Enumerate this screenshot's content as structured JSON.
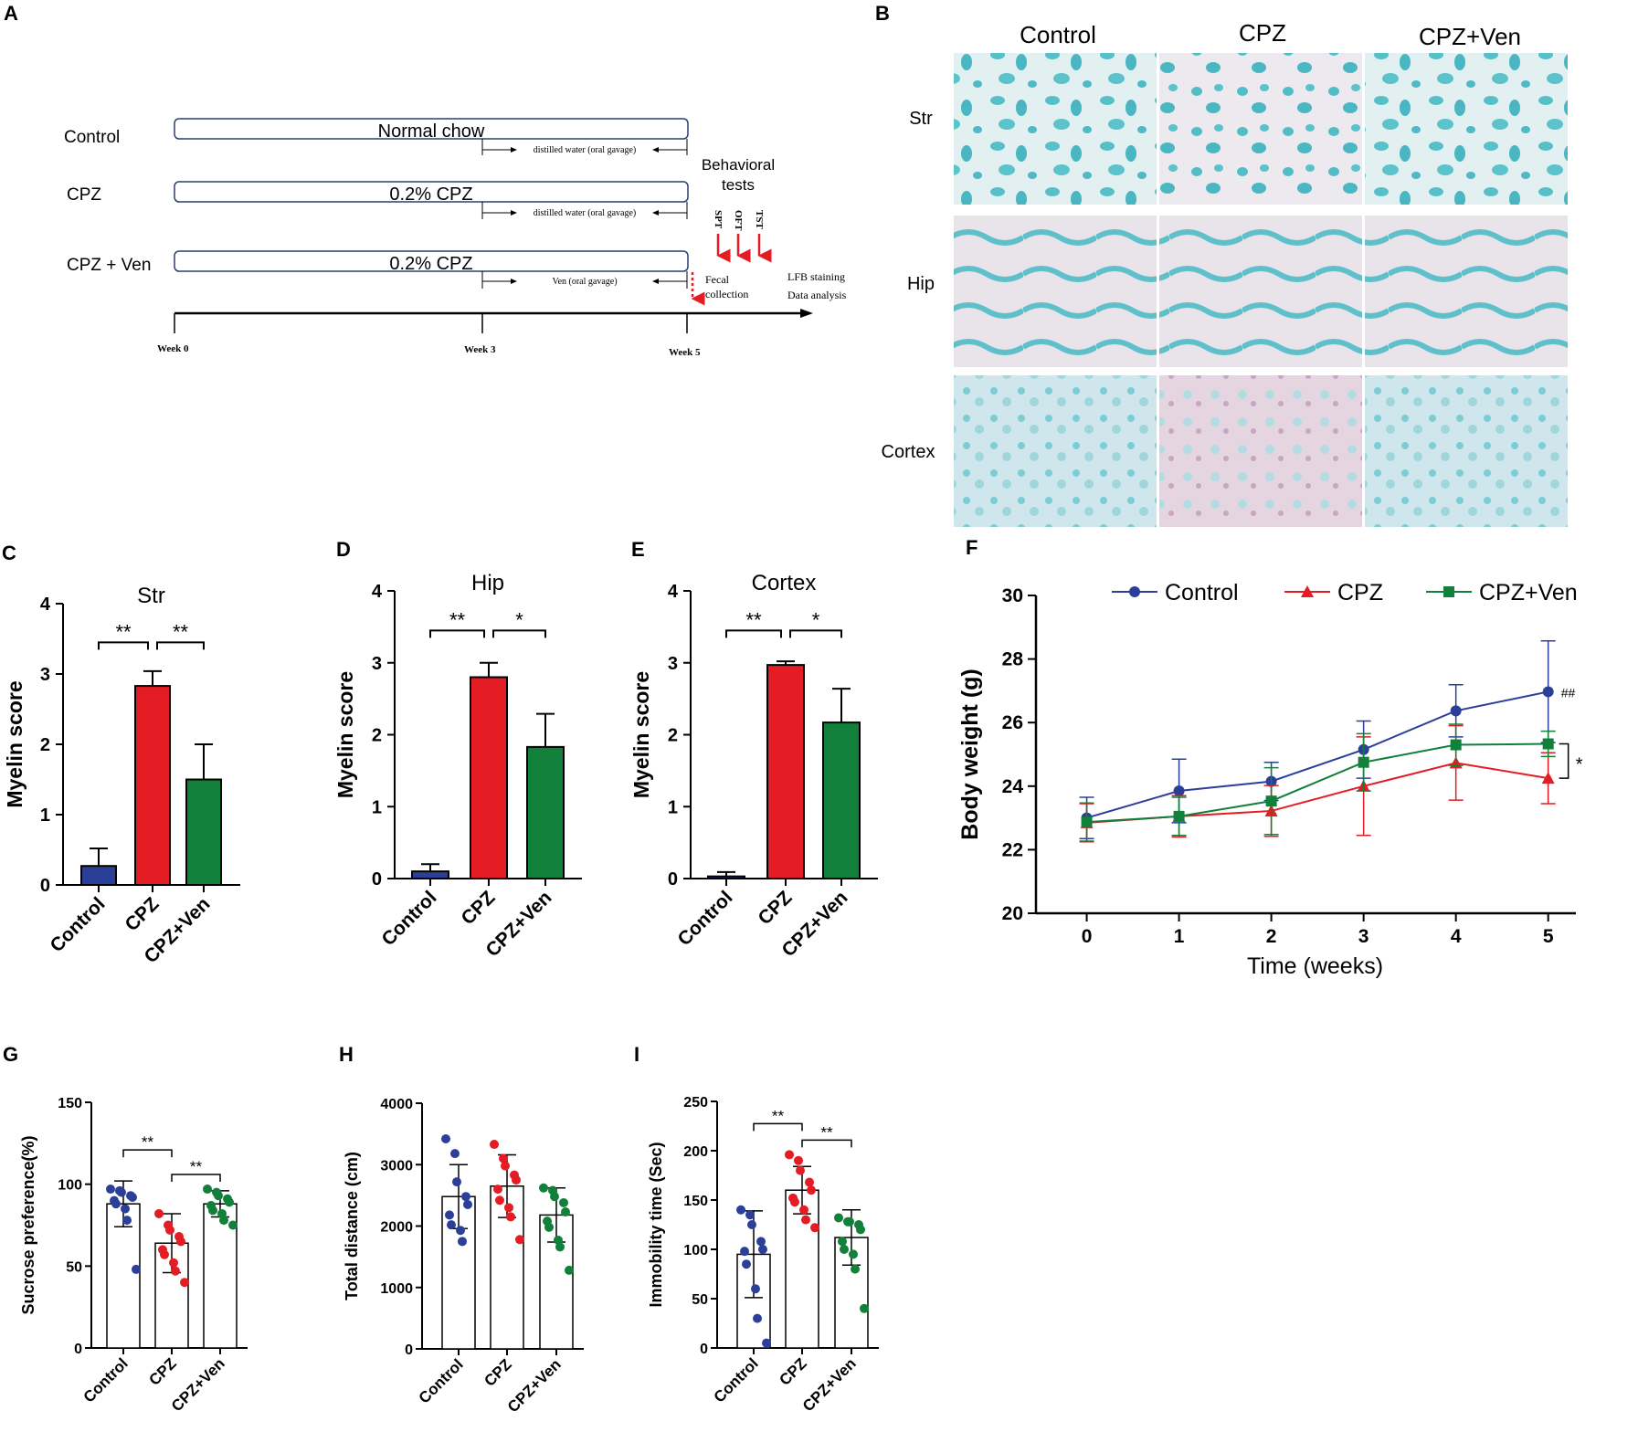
{
  "colors": {
    "control": "#2B3F99",
    "cpz": "#E41C23",
    "ven": "#11803A",
    "stain_blue": "#4BB8C4",
    "stain_bg": "#E8DDE3"
  },
  "panel_labels": {
    "a": "A",
    "b": "B",
    "c": "C",
    "d": "D",
    "e": "E",
    "f": "F",
    "g": "G",
    "h": "H",
    "i": "I"
  },
  "panel_a": {
    "groups": [
      "Control",
      "CPZ",
      "CPZ + Ven"
    ],
    "diets": [
      "Normal chow",
      "0.2% CPZ",
      "0.2% CPZ"
    ],
    "gavage": [
      "distilled water (oral gavage)",
      "distilled water (oral gavage)",
      "Ven (oral gavage)"
    ],
    "behavioral": [
      "Behavioral",
      "tests"
    ],
    "tests": [
      "SPT",
      "OFT",
      "TST"
    ],
    "fecal": [
      "Fecal",
      "collection"
    ],
    "post": [
      "LFB staining",
      "Data analysis"
    ],
    "weeks": [
      "Week 0",
      "Week 3",
      "Week 5"
    ]
  },
  "panel_b": {
    "columns": [
      "Control",
      "CPZ",
      "CPZ+Ven"
    ],
    "rows": [
      "Str",
      "Hip",
      "Cortex"
    ]
  },
  "chart_data": [
    {
      "id": "C",
      "type": "bar",
      "title": "Str",
      "ylabel": "Myelin score",
      "ylim": [
        0,
        4
      ],
      "yticks": [
        0,
        1,
        2,
        3,
        4
      ],
      "categories": [
        "Control",
        "CPZ",
        "CPZ+Ven"
      ],
      "values": [
        0.27,
        2.83,
        1.5
      ],
      "errors": [
        0.25,
        0.21,
        0.5
      ],
      "significance": [
        {
          "from": 0,
          "to": 1,
          "label": "**"
        },
        {
          "from": 1,
          "to": 2,
          "label": "**"
        }
      ]
    },
    {
      "id": "D",
      "type": "bar",
      "title": "Hip",
      "ylabel": "Myelin score",
      "ylim": [
        0,
        4
      ],
      "yticks": [
        0,
        1,
        2,
        3,
        4
      ],
      "categories": [
        "Control",
        "CPZ",
        "CPZ+Ven"
      ],
      "values": [
        0.1,
        2.8,
        1.83
      ],
      "errors": [
        0.1,
        0.2,
        0.46
      ],
      "significance": [
        {
          "from": 0,
          "to": 1,
          "label": "**"
        },
        {
          "from": 1,
          "to": 2,
          "label": "*"
        }
      ]
    },
    {
      "id": "E",
      "type": "bar",
      "title": "Cortex",
      "ylabel": "Myelin score",
      "ylim": [
        0,
        4
      ],
      "yticks": [
        0,
        1,
        2,
        3,
        4
      ],
      "categories": [
        "Control",
        "CPZ",
        "CPZ+Ven"
      ],
      "values": [
        0.03,
        2.97,
        2.17
      ],
      "errors": [
        0.06,
        0.05,
        0.47
      ],
      "significance": [
        {
          "from": 0,
          "to": 1,
          "label": "**"
        },
        {
          "from": 1,
          "to": 2,
          "label": "*"
        }
      ]
    },
    {
      "id": "F",
      "type": "line",
      "xlabel": "Time (weeks)",
      "ylabel": "Body weight (g)",
      "xlim": [
        -0.55,
        5.3
      ],
      "ylim": [
        20,
        30
      ],
      "x": [
        0,
        1,
        2,
        3,
        4,
        5
      ],
      "yticks": [
        20,
        22,
        24,
        26,
        28,
        30
      ],
      "series": [
        {
          "name": "Control",
          "marker": "circle",
          "values": [
            23.0,
            23.85,
            24.15,
            25.15,
            26.37,
            26.97
          ],
          "errors": [
            0.65,
            1.0,
            0.6,
            0.9,
            0.82,
            1.6
          ]
        },
        {
          "name": "CPZ",
          "marker": "triangle",
          "values": [
            22.85,
            23.05,
            23.22,
            24.0,
            24.73,
            24.25
          ],
          "errors": [
            0.6,
            0.65,
            0.8,
            1.55,
            1.17,
            0.8
          ]
        },
        {
          "name": "CPZ+Ven",
          "marker": "square",
          "values": [
            22.87,
            23.05,
            23.53,
            24.75,
            25.3,
            25.33
          ],
          "errors": [
            0.6,
            0.6,
            1.05,
            0.9,
            0.65,
            0.4
          ]
        }
      ],
      "annotations": {
        "control_sig": "##",
        "bracket_sig": "*"
      }
    },
    {
      "id": "G",
      "type": "scatter",
      "ylabel": "Sucrose preference(%)",
      "ylim": [
        0,
        150
      ],
      "yticks": [
        0,
        50,
        100,
        150
      ],
      "categories": [
        "Control",
        "CPZ",
        "CPZ+Ven"
      ],
      "means": [
        88,
        64,
        88
      ],
      "sd": [
        14,
        18,
        8
      ],
      "points": [
        [
          97,
          96,
          95,
          93,
          92,
          90,
          88,
          85,
          78,
          48
        ],
        [
          82,
          75,
          72,
          68,
          65,
          60,
          57,
          52,
          47,
          40
        ],
        [
          97,
          95,
          93,
          91,
          89,
          87,
          84,
          82,
          78,
          75
        ]
      ],
      "significance": [
        {
          "from": 0,
          "to": 1,
          "label": "**"
        },
        {
          "from": 1,
          "to": 2,
          "label": "**"
        }
      ]
    },
    {
      "id": "H",
      "type": "scatter",
      "ylabel": "Total distance (cm)",
      "ylim": [
        0,
        4000
      ],
      "yticks": [
        0,
        1000,
        2000,
        3000,
        4000
      ],
      "categories": [
        "Control",
        "CPZ",
        "CPZ+Ven"
      ],
      "means": [
        2480,
        2650,
        2180
      ],
      "sd": [
        520,
        510,
        440
      ],
      "points": [
        [
          3420,
          3180,
          2720,
          2480,
          2350,
          2180,
          2020,
          1930,
          1750
        ],
        [
          3330,
          3100,
          2980,
          2830,
          2750,
          2600,
          2420,
          2300,
          2150,
          1780
        ],
        [
          2620,
          2580,
          2480,
          2380,
          2230,
          2080,
          1980,
          1770,
          1660,
          1280
        ]
      ],
      "significance": []
    },
    {
      "id": "I",
      "type": "scatter",
      "ylabel": "Immobility time (Sec)",
      "ylim": [
        0,
        250
      ],
      "yticks": [
        0,
        50,
        100,
        150,
        200,
        250
      ],
      "categories": [
        "Control",
        "CPZ",
        "CPZ+Ven"
      ],
      "means": [
        95,
        160,
        112
      ],
      "sd": [
        44,
        24,
        28
      ],
      "points": [
        [
          140,
          135,
          125,
          108,
          100,
          98,
          85,
          60,
          30,
          5
        ],
        [
          196,
          190,
          180,
          168,
          160,
          152,
          148,
          140,
          130,
          122
        ],
        [
          132,
          128,
          128,
          125,
          120,
          108,
          100,
          95,
          80,
          40
        ]
      ],
      "significance": [
        {
          "from": 0,
          "to": 1,
          "label": "**"
        },
        {
          "from": 1,
          "to": 2,
          "label": "**"
        }
      ]
    }
  ]
}
